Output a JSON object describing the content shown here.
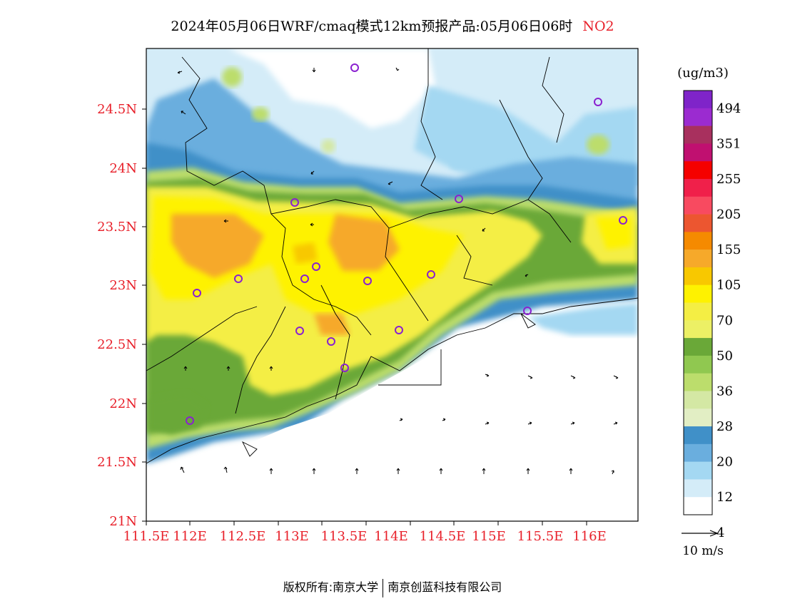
{
  "title": {
    "text": "2024年05月06日WRF/cmaq模式12km预报产品:05月06日06时",
    "species": "NO2"
  },
  "map": {
    "lat_ticks": [
      "24.5N",
      "24N",
      "23.5N",
      "23N",
      "22.5N",
      "22N",
      "21.5N",
      "21N"
    ],
    "lon_ticks": [
      "111.5E",
      "112E",
      "112.5E",
      "113E",
      "113.5E",
      "114E",
      "114.5E",
      "115E",
      "115.5E",
      "116E"
    ],
    "colors": {
      "axis_label": "#e8202a"
    }
  },
  "legend": {
    "unit": "(ug/m3)",
    "labels": [
      "494",
      "351",
      "255",
      "205",
      "155",
      "105",
      "70",
      "50",
      "36",
      "28",
      "20",
      "12",
      "4"
    ],
    "colors": [
      "#7f24c9",
      "#9b2bd0",
      "#a8305e",
      "#c01070",
      "#f50000",
      "#f0204a",
      "#f84a60",
      "#ec5630",
      "#f58a00",
      "#f6a92a",
      "#f8c800",
      "#fef200",
      "#f4ee44",
      "#ecf065",
      "#6aa838",
      "#90c850",
      "#bcdd6c",
      "#d4e8a4",
      "#e2eec4",
      "#4090c8",
      "#6aaede",
      "#a4d8f2",
      "#d4ecf8",
      "#ffffff"
    ],
    "wind_label": "10 m/s"
  },
  "footer": {
    "left": "版权所有:南京大学",
    "right": "南京创蓝科技有限公司"
  }
}
